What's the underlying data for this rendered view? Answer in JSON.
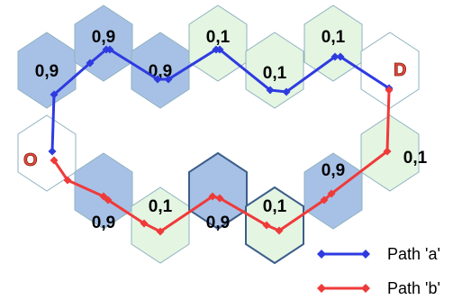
{
  "colors": {
    "high": "#a7c1e6",
    "low": "#e4f5e2",
    "empty": "#ffffff",
    "hex_stroke": "#8fb2c0",
    "bold_stroke": "#3c5e8a",
    "path_a": "#2e3be0",
    "path_b": "#ef3a3a",
    "node_text": "#e8493a"
  },
  "cells": [
    {
      "id": "top-0",
      "label": "0,9",
      "kind": "high"
    },
    {
      "id": "top-1",
      "label": "0,9",
      "kind": "high"
    },
    {
      "id": "top-2",
      "label": "0,9",
      "kind": "high"
    },
    {
      "id": "top-3",
      "label": "0,1",
      "kind": "low"
    },
    {
      "id": "top-4",
      "label": "0,1",
      "kind": "low"
    },
    {
      "id": "top-5",
      "label": "0,1",
      "kind": "low"
    },
    {
      "id": "top-6",
      "label": "",
      "kind": "empty"
    },
    {
      "id": "mid-left",
      "label": "",
      "kind": "empty"
    },
    {
      "id": "mid-right",
      "label": "0,1",
      "kind": "low"
    },
    {
      "id": "bot-0",
      "label": "0,9",
      "kind": "high"
    },
    {
      "id": "bot-1",
      "label": "0,1",
      "kind": "low"
    },
    {
      "id": "bot-2",
      "label": "0,9",
      "kind": "high"
    },
    {
      "id": "bot-3",
      "label": "0,1",
      "kind": "low"
    },
    {
      "id": "bot-4",
      "label": "0,9",
      "kind": "high"
    }
  ],
  "nodes": {
    "origin": "O",
    "destination": "D"
  },
  "legend": {
    "path_a": "Path 'a'",
    "path_b": "Path 'b'"
  }
}
